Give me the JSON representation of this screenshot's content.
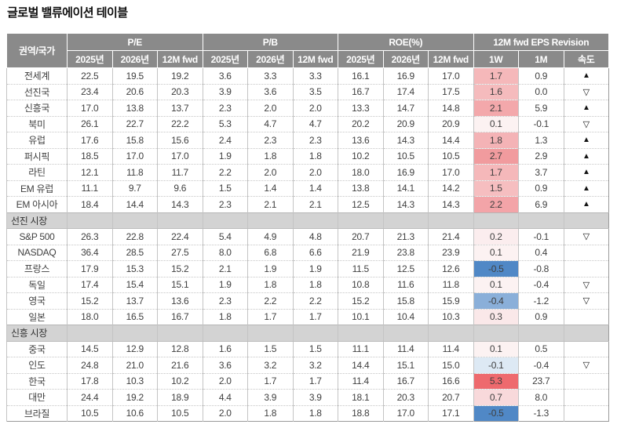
{
  "title": "글로벌 밸류에이션 테이블",
  "colors": {
    "header_bg": "#8A8A8A",
    "header_text": "#FFFFFF",
    "section_bg": "#D3D3D3",
    "body_text": "#3F3F3F",
    "heat_red_strong": "#EE6A6E",
    "heat_blue_strong": "#5088C6"
  },
  "table": {
    "corner_header": "권역/국가",
    "groups": [
      {
        "label": "P/E",
        "cols": 3
      },
      {
        "label": "P/B",
        "cols": 3
      },
      {
        "label": "ROE(%)",
        "cols": 3
      },
      {
        "label": "12M fwd EPS Revision",
        "cols": 3
      }
    ],
    "subheaders": [
      "2025년",
      "2026년",
      "12M fwd",
      "2025년",
      "2026년",
      "12M fwd",
      "2025년",
      "2026년",
      "12M fwd",
      "1W",
      "1M",
      "속도"
    ],
    "rows": [
      {
        "type": "data",
        "label": "전세계",
        "values": [
          "22.5",
          "19.5",
          "19.2",
          "3.6",
          "3.3",
          "3.3",
          "16.1",
          "16.9",
          "17.0",
          "1.7",
          "0.9",
          "▲"
        ],
        "w1_bg": "#F5B8BA"
      },
      {
        "type": "data",
        "label": "선진국",
        "values": [
          "23.4",
          "20.6",
          "20.3",
          "3.9",
          "3.6",
          "3.5",
          "16.7",
          "17.4",
          "17.5",
          "1.6",
          "0.0",
          "▽"
        ],
        "w1_bg": "#F5BBBD"
      },
      {
        "type": "data",
        "label": "신흥국",
        "values": [
          "17.0",
          "13.8",
          "13.7",
          "2.3",
          "2.0",
          "2.0",
          "13.3",
          "14.7",
          "14.8",
          "2.1",
          "5.9",
          "▲"
        ],
        "w1_bg": "#F3A8AB"
      },
      {
        "type": "data",
        "label": "북미",
        "values": [
          "26.1",
          "22.7",
          "22.2",
          "5.3",
          "4.7",
          "4.7",
          "20.2",
          "20.9",
          "20.9",
          "0.1",
          "-0.1",
          "▽"
        ],
        "w1_bg": "#FCF2F2"
      },
      {
        "type": "data",
        "label": "유럽",
        "values": [
          "17.6",
          "15.8",
          "15.6",
          "2.4",
          "2.3",
          "2.3",
          "13.6",
          "14.3",
          "14.4",
          "1.8",
          "1.3",
          "▲"
        ],
        "w1_bg": "#F4B3B6"
      },
      {
        "type": "data",
        "label": "퍼시픽",
        "values": [
          "18.5",
          "17.0",
          "17.0",
          "1.9",
          "1.8",
          "1.8",
          "10.2",
          "10.5",
          "10.5",
          "2.7",
          "2.9",
          "▲"
        ],
        "w1_bg": "#F19B9E"
      },
      {
        "type": "data",
        "label": "라틴",
        "values": [
          "12.1",
          "11.8",
          "11.7",
          "2.2",
          "2.0",
          "2.0",
          "18.0",
          "16.9",
          "17.0",
          "1.7",
          "3.7",
          "▲"
        ],
        "w1_bg": "#F5B8BA"
      },
      {
        "type": "data",
        "label": "EM 유럽",
        "values": [
          "11.1",
          "9.7",
          "9.6",
          "1.5",
          "1.4",
          "1.4",
          "13.8",
          "14.1",
          "14.2",
          "1.5",
          "0.9",
          "▲"
        ],
        "w1_bg": "#F6BEC0"
      },
      {
        "type": "data",
        "label": "EM 아시아",
        "values": [
          "18.4",
          "14.4",
          "14.3",
          "2.3",
          "2.1",
          "2.1",
          "12.5",
          "14.3",
          "14.3",
          "2.2",
          "6.9",
          "▲"
        ],
        "w1_bg": "#F3A4A8"
      },
      {
        "type": "section",
        "label": "선진 시장"
      },
      {
        "type": "data",
        "label": "S&P 500",
        "values": [
          "26.3",
          "22.8",
          "22.4",
          "5.4",
          "4.9",
          "4.8",
          "20.7",
          "21.3",
          "21.4",
          "0.2",
          "-0.1",
          "▽"
        ],
        "w1_bg": "#FBEDEE"
      },
      {
        "type": "data",
        "label": "NASDAQ",
        "values": [
          "36.4",
          "28.5",
          "27.5",
          "8.0",
          "6.8",
          "6.6",
          "21.9",
          "23.8",
          "23.9",
          "0.1",
          "0.4",
          ""
        ],
        "w1_bg": "#FCF2F2"
      },
      {
        "type": "data",
        "label": "프랑스",
        "values": [
          "17.9",
          "15.3",
          "15.2",
          "2.1",
          "1.9",
          "1.9",
          "11.5",
          "12.5",
          "12.6",
          "-0.5",
          "-0.8",
          ""
        ],
        "w1_bg": "#5088C6"
      },
      {
        "type": "data",
        "label": "독일",
        "values": [
          "17.4",
          "15.4",
          "15.1",
          "1.9",
          "1.8",
          "1.8",
          "10.8",
          "11.6",
          "11.8",
          "0.1",
          "-0.4",
          "▽"
        ],
        "w1_bg": "#FCF2F2"
      },
      {
        "type": "data",
        "label": "영국",
        "values": [
          "15.2",
          "13.7",
          "13.6",
          "2.3",
          "2.2",
          "2.2",
          "15.2",
          "15.8",
          "15.9",
          "-0.4",
          "-1.2",
          "▽"
        ],
        "w1_bg": "#8AAFD9"
      },
      {
        "type": "data",
        "label": "일본",
        "values": [
          "18.0",
          "16.5",
          "16.7",
          "1.8",
          "1.7",
          "1.7",
          "10.1",
          "10.4",
          "10.3",
          "0.3",
          "0.9",
          ""
        ],
        "w1_bg": "#FAE8E9"
      },
      {
        "type": "section",
        "label": "신흥 시장"
      },
      {
        "type": "data",
        "label": "중국",
        "values": [
          "14.5",
          "12.9",
          "12.8",
          "1.6",
          "1.5",
          "1.5",
          "11.1",
          "11.4",
          "11.4",
          "0.1",
          "0.5",
          ""
        ],
        "w1_bg": "#FCF2F2"
      },
      {
        "type": "data",
        "label": "인도",
        "values": [
          "24.8",
          "21.0",
          "21.6",
          "3.6",
          "3.2",
          "3.2",
          "14.4",
          "15.1",
          "15.0",
          "-0.1",
          "-0.4",
          "▽"
        ],
        "w1_bg": "#DDE9F4"
      },
      {
        "type": "data",
        "label": "한국",
        "values": [
          "17.8",
          "10.3",
          "10.2",
          "2.0",
          "1.7",
          "1.7",
          "11.4",
          "16.7",
          "16.6",
          "5.3",
          "23.7",
          ""
        ],
        "w1_bg": "#EE6A6E"
      },
      {
        "type": "data",
        "label": "대만",
        "values": [
          "24.4",
          "19.2",
          "18.9",
          "4.4",
          "3.9",
          "3.9",
          "18.1",
          "20.3",
          "20.7",
          "0.7",
          "8.0",
          ""
        ],
        "w1_bg": "#F8D9DB"
      },
      {
        "type": "data",
        "label": "브라질",
        "values": [
          "10.5",
          "10.6",
          "10.5",
          "2.0",
          "1.8",
          "1.8",
          "18.8",
          "17.0",
          "17.1",
          "-0.5",
          "-1.3",
          ""
        ],
        "w1_bg": "#5088C6"
      }
    ]
  }
}
